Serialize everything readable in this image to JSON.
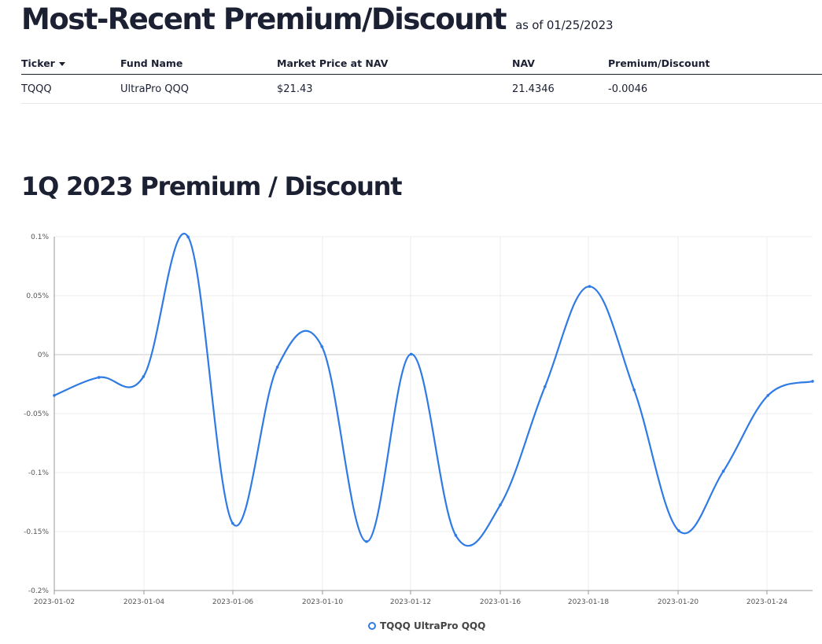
{
  "heading": {
    "title": "Most-Recent Premium/Discount",
    "as_of": "as of 01/25/2023"
  },
  "table": {
    "columns": [
      "Ticker",
      "Fund Name",
      "Market Price at NAV",
      "NAV",
      "Premium/Discount"
    ],
    "rows": [
      {
        "ticker": "TQQQ",
        "fund_name": "UltraPro QQQ",
        "market_price": "$21.43",
        "nav": "21.4346",
        "premium_discount": "-0.0046"
      }
    ]
  },
  "chart_heading": "1Q 2023 Premium / Discount",
  "chart_data": {
    "type": "line",
    "title": "",
    "xlabel": "",
    "ylabel": "",
    "ylim": [
      -0.2,
      0.1
    ],
    "y_ticks": [
      "0.1%",
      "0.05%",
      "0%",
      "-0.05%",
      "-0.1%",
      "-0.15%",
      "-0.2%"
    ],
    "y_tick_values": [
      0.1,
      0.05,
      0,
      -0.05,
      -0.1,
      -0.15,
      -0.2
    ],
    "x_ticks": [
      "2023-01-02",
      "2023-01-04",
      "2023-01-06",
      "2023-01-10",
      "2023-01-12",
      "2023-01-16",
      "2023-01-18",
      "2023-01-20",
      "2023-01-24"
    ],
    "grid": true,
    "legend_position": "bottom",
    "series": [
      {
        "name": "TQQQ UltraPro QQQ",
        "color": "#2f7ae5",
        "values": [
          -0.0346,
          -0.0193,
          -0.0186,
          0.0998,
          -0.143,
          -0.0106,
          0.0068,
          -0.1585,
          0.0004,
          -0.1532,
          -0.1274,
          -0.0272,
          0.0578,
          -0.0299,
          -0.1493,
          -0.0988,
          -0.0346,
          -0.0226
        ]
      }
    ]
  }
}
